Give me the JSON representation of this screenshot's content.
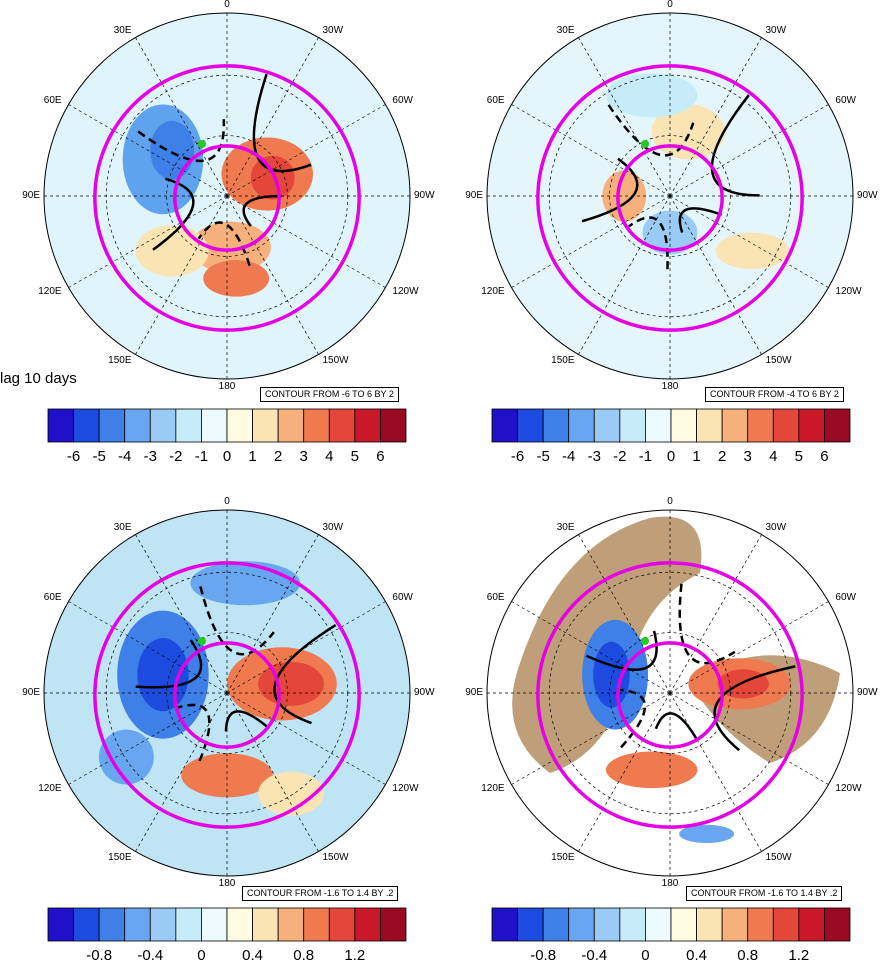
{
  "lag_label": "lag 10 days",
  "lon_labels": [
    "0",
    "30W",
    "60W",
    "90W",
    "120W",
    "150W",
    "180",
    "150E",
    "120E",
    "90E",
    "60E",
    "30E"
  ],
  "panels": [
    {
      "id": "top-left",
      "contour_text": "CONTOUR FROM -6 TO 6 BY 2",
      "land_fill": false,
      "bg": "#dff5fb",
      "scale_ticks": [
        "-6",
        "-5",
        "-4",
        "-3",
        "-2",
        "-1",
        "0",
        "1",
        "2",
        "3",
        "4",
        "5",
        "6"
      ]
    },
    {
      "id": "top-right",
      "contour_text": "CONTOUR FROM -4 TO 6 BY 2",
      "land_fill": false,
      "bg": "#e4f6fb",
      "scale_ticks": [
        "-6",
        "-5",
        "-4",
        "-3",
        "-2",
        "-1",
        "0",
        "1",
        "2",
        "3",
        "4",
        "5",
        "6"
      ]
    },
    {
      "id": "bottom-left",
      "contour_text": "CONTOUR FROM -1.6 TO 1.4 BY .2",
      "land_fill": false,
      "bg": "#bfe4f4",
      "scale_ticks": [
        "-0.8",
        "-0.4",
        "0",
        "0.4",
        "0.8",
        "1.2"
      ]
    },
    {
      "id": "bottom-right",
      "contour_text": "CONTOUR FROM -1.6 TO 1.4 BY .2",
      "land_fill": true,
      "bg": "#ffffff",
      "scale_ticks": [
        "-0.8",
        "-0.4",
        "0",
        "0.4",
        "0.8",
        "1.2"
      ]
    }
  ],
  "colorbar_colors": [
    "#1f11c8",
    "#1d4be0",
    "#3f7fe8",
    "#68a6f0",
    "#99cbf6",
    "#c7ecf9",
    "#eafaff",
    "#fffbe0",
    "#fbe4b4",
    "#f6b07c",
    "#ef7a4f",
    "#e5463a",
    "#c8182a",
    "#9a0a22"
  ],
  "colors": {
    "circle": "#e600e6",
    "land": "#bf9f79",
    "green_marker": "#22cc22"
  },
  "chart_data": [
    {
      "type": "heatmap",
      "title": "",
      "projection": "north polar stereographic",
      "lon_labels": [
        "0",
        "30W",
        "60W",
        "90W",
        "120W",
        "150W",
        "180",
        "150E",
        "120E",
        "90E",
        "60E",
        "30E"
      ],
      "colorbar": {
        "ticks": [
          -6,
          -5,
          -4,
          -3,
          -2,
          -1,
          0,
          1,
          2,
          3,
          4,
          5,
          6
        ]
      },
      "contours": {
        "from": -6,
        "to": 6,
        "by": 2
      }
    },
    {
      "type": "heatmap",
      "title": "",
      "projection": "north polar stereographic",
      "lon_labels": [
        "0",
        "30W",
        "60W",
        "90W",
        "120W",
        "150W",
        "180",
        "150E",
        "120E",
        "90E",
        "60E",
        "30E"
      ],
      "colorbar": {
        "ticks": [
          -6,
          -5,
          -4,
          -3,
          -2,
          -1,
          0,
          1,
          2,
          3,
          4,
          5,
          6
        ]
      },
      "contours": {
        "from": -4,
        "to": 6,
        "by": 2
      }
    },
    {
      "type": "heatmap",
      "title": "",
      "projection": "north polar stereographic",
      "lon_labels": [
        "0",
        "30W",
        "60W",
        "90W",
        "120W",
        "150W",
        "180",
        "150E",
        "120E",
        "90E",
        "60E",
        "30E"
      ],
      "colorbar": {
        "ticks": [
          -0.8,
          -0.4,
          0,
          0.4,
          0.8,
          1.2
        ]
      },
      "contours": {
        "from": -1.6,
        "to": 1.4,
        "by": 0.2
      }
    },
    {
      "type": "heatmap",
      "title": "",
      "projection": "north polar stereographic",
      "lon_labels": [
        "0",
        "30W",
        "60W",
        "90W",
        "120W",
        "150W",
        "180",
        "150E",
        "120E",
        "90E",
        "60E",
        "30E"
      ],
      "colorbar": {
        "ticks": [
          -0.8,
          -0.4,
          0,
          0.4,
          0.8,
          1.2
        ]
      },
      "contours": {
        "from": -1.6,
        "to": 1.4,
        "by": 0.2
      }
    }
  ]
}
